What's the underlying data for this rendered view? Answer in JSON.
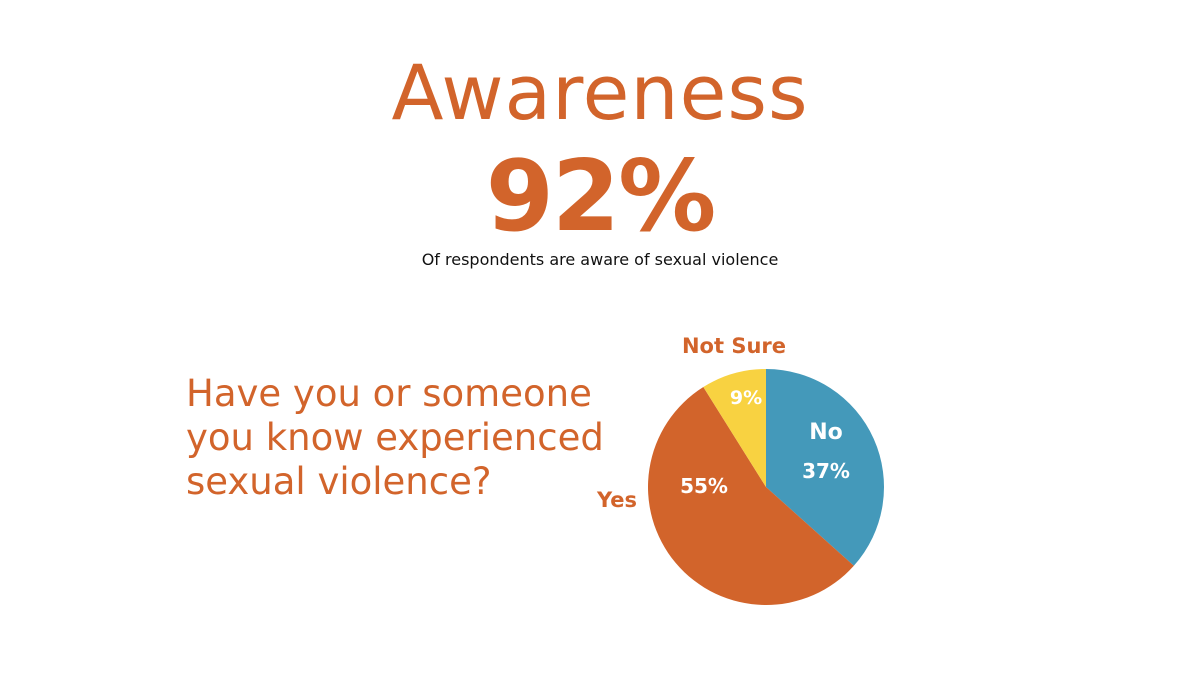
{
  "header": {
    "title": "Awareness",
    "stat": "92%",
    "stat_caption": "Of respondents are aware of sexual violence"
  },
  "question": "Have you or someone you know experienced sexual violence?",
  "colors": {
    "orange": "#D2642B",
    "blue": "#4499BA",
    "yellow": "#F8D241"
  },
  "chart_data": {
    "type": "pie",
    "title": "",
    "slices": [
      {
        "label": "No",
        "value": 37,
        "value_label": "37%",
        "color": "#4499BA"
      },
      {
        "label": "Yes",
        "value": 55,
        "value_label": "55%",
        "color": "#D2642B"
      },
      {
        "label": "Not Sure",
        "value": 9,
        "value_label": "9%",
        "color": "#F8D241"
      }
    ],
    "start": "top",
    "direction": "clockwise"
  }
}
